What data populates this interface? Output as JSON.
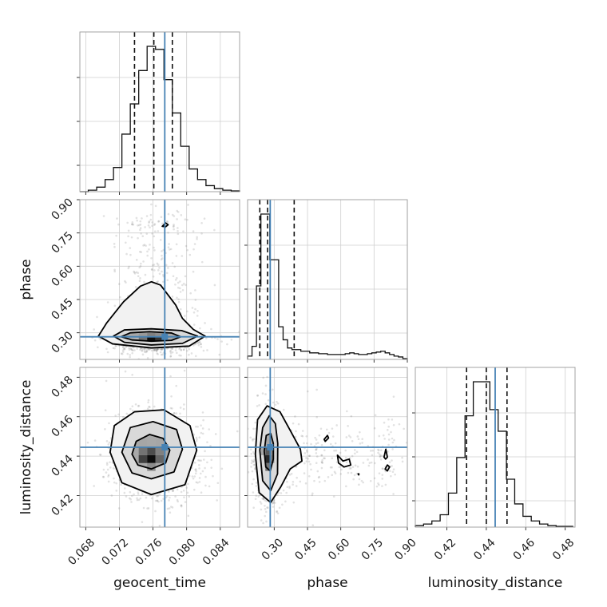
{
  "chart_data": {
    "type": "scatter",
    "plot": "corner",
    "parameters": [
      "geocent_time",
      "phase",
      "luminosity_distance"
    ],
    "axis_labels": {
      "x": [
        "geocent_time",
        "phase",
        "luminosity_distance"
      ],
      "y": [
        "phase",
        "luminosity_distance"
      ]
    },
    "ranges": {
      "geocent_time": [
        0.0673,
        0.0863
      ],
      "phase": [
        0.18,
        0.9
      ],
      "luminosity_distance": [
        0.404,
        0.485
      ]
    },
    "ticks": {
      "geocent_time": [
        "0.068",
        "0.072",
        "0.076",
        "0.080",
        "0.084"
      ],
      "phase": [
        "0.30",
        "0.45",
        "0.60",
        "0.75",
        "0.90"
      ],
      "luminosity_distance": [
        "0.42",
        "0.44",
        "0.46",
        "0.48"
      ]
    },
    "truths": {
      "geocent_time": 0.0774,
      "phase": 0.282,
      "luminosity_distance": 0.4445
    },
    "quantiles": {
      "geocent_time": [
        0.0738,
        0.0761,
        0.0783
      ],
      "phase": [
        0.235,
        0.27,
        0.39
      ],
      "luminosity_distance": [
        0.43,
        0.44,
        0.4505
      ]
    },
    "histograms": {
      "geocent_time": {
        "bin_edges": [
          0.0673,
          0.0683,
          0.0693,
          0.0703,
          0.0713,
          0.0723,
          0.0733,
          0.0743,
          0.0753,
          0.0763,
          0.0773,
          0.0783,
          0.0793,
          0.0803,
          0.0813,
          0.0823,
          0.0833,
          0.0843,
          0.0853,
          0.0863
        ],
        "counts": [
          0,
          0.01,
          0.03,
          0.08,
          0.16,
          0.38,
          0.58,
          0.8,
          0.96,
          0.94,
          0.74,
          0.52,
          0.3,
          0.15,
          0.08,
          0.04,
          0.02,
          0.01,
          0.005
        ]
      },
      "phase": {
        "bin_edges": [
          0.18,
          0.2,
          0.22,
          0.24,
          0.26,
          0.28,
          0.3,
          0.32,
          0.34,
          0.36,
          0.38,
          0.4,
          0.42,
          0.44,
          0.46,
          0.48,
          0.5,
          0.52,
          0.54,
          0.56,
          0.58,
          0.6,
          0.62,
          0.64,
          0.66,
          0.68,
          0.7,
          0.72,
          0.74,
          0.76,
          0.78,
          0.8,
          0.82,
          0.84,
          0.86,
          0.88,
          0.9
        ],
        "counts": [
          0.02,
          0.08,
          0.45,
          0.89,
          0.89,
          0.61,
          0.61,
          0.2,
          0.12,
          0.07,
          0.06,
          0.06,
          0.05,
          0.05,
          0.04,
          0.04,
          0.035,
          0.035,
          0.03,
          0.03,
          0.03,
          0.03,
          0.035,
          0.04,
          0.035,
          0.03,
          0.03,
          0.035,
          0.04,
          0.045,
          0.05,
          0.04,
          0.03,
          0.02,
          0.015,
          0.005
        ]
      },
      "luminosity_distance": {
        "bin_edges": [
          0.404,
          0.4082,
          0.4124,
          0.4166,
          0.4208,
          0.425,
          0.4292,
          0.4334,
          0.4376,
          0.4418,
          0.446,
          0.4502,
          0.4544,
          0.4586,
          0.4628,
          0.467,
          0.4712,
          0.4754,
          0.4796,
          0.4838
        ],
        "counts": [
          0.01,
          0.02,
          0.04,
          0.08,
          0.22,
          0.45,
          0.72,
          0.94,
          0.94,
          0.76,
          0.62,
          0.31,
          0.15,
          0.07,
          0.04,
          0.02,
          0.01,
          0.005,
          0.005
        ]
      }
    },
    "contours_2d": [
      {
        "x": "geocent_time",
        "y": "phase",
        "levels": [
          [
            [
              0.0722,
              0.282
            ],
            [
              0.0735,
              0.268
            ],
            [
              0.0758,
              0.262
            ],
            [
              0.0782,
              0.266
            ],
            [
              0.0793,
              0.282
            ],
            [
              0.0782,
              0.299
            ],
            [
              0.0756,
              0.305
            ],
            [
              0.0733,
              0.3
            ]
          ],
          [
            [
              0.0713,
              0.285
            ],
            [
              0.0726,
              0.257
            ],
            [
              0.0758,
              0.245
            ],
            [
              0.0795,
              0.252
            ],
            [
              0.0813,
              0.285
            ],
            [
              0.0794,
              0.31
            ],
            [
              0.0758,
              0.318
            ],
            [
              0.0726,
              0.313
            ]
          ],
          [
            [
              0.0695,
              0.285
            ],
            [
              0.0712,
              0.25
            ],
            [
              0.0758,
              0.232
            ],
            [
              0.0803,
              0.24
            ],
            [
              0.0822,
              0.285
            ],
            [
              0.0808,
              0.315
            ],
            [
              0.0795,
              0.365
            ],
            [
              0.0787,
              0.425
            ],
            [
              0.0769,
              0.515
            ],
            [
              0.0758,
              0.53
            ],
            [
              0.0745,
              0.51
            ],
            [
              0.0725,
              0.44
            ],
            [
              0.0705,
              0.345
            ]
          ],
          [
            [
              0.0771,
              0.78
            ],
            [
              0.0775,
              0.795
            ],
            [
              0.0778,
              0.787
            ],
            [
              0.0775,
              0.778
            ]
          ]
        ]
      },
      {
        "x": "geocent_time",
        "y": "luminosity_distance",
        "levels": [
          [
            [
              0.0735,
              0.441
            ],
            [
              0.0742,
              0.4355
            ],
            [
              0.0758,
              0.4335
            ],
            [
              0.0775,
              0.4365
            ],
            [
              0.078,
              0.443
            ],
            [
              0.0772,
              0.449
            ],
            [
              0.0756,
              0.451
            ],
            [
              0.074,
              0.4475
            ]
          ],
          [
            [
              0.0723,
              0.442
            ],
            [
              0.0735,
              0.4315
            ],
            [
              0.0758,
              0.4285
            ],
            [
              0.0785,
              0.432
            ],
            [
              0.0795,
              0.4435
            ],
            [
              0.0788,
              0.4535
            ],
            [
              0.076,
              0.4575
            ],
            [
              0.0733,
              0.4545
            ]
          ],
          [
            [
              0.0709,
              0.442
            ],
            [
              0.0723,
              0.4265
            ],
            [
              0.0758,
              0.4205
            ],
            [
              0.0798,
              0.4255
            ],
            [
              0.0812,
              0.443
            ],
            [
              0.0804,
              0.4555
            ],
            [
              0.0773,
              0.4635
            ],
            [
              0.0738,
              0.4625
            ],
            [
              0.0714,
              0.4555
            ]
          ]
        ]
      },
      {
        "x": "phase",
        "y": "luminosity_distance",
        "levels": [
          [
            [
              0.255,
              0.4425
            ],
            [
              0.262,
              0.4345
            ],
            [
              0.282,
              0.4325
            ],
            [
              0.296,
              0.4385
            ],
            [
              0.296,
              0.4465
            ],
            [
              0.284,
              0.4515
            ],
            [
              0.264,
              0.4505
            ]
          ],
          [
            [
              0.235,
              0.443
            ],
            [
              0.248,
              0.4275
            ],
            [
              0.284,
              0.4225
            ],
            [
              0.315,
              0.431
            ],
            [
              0.316,
              0.4465
            ],
            [
              0.305,
              0.4565
            ],
            [
              0.278,
              0.4605
            ],
            [
              0.248,
              0.4545
            ]
          ],
          [
            [
              0.215,
              0.441
            ],
            [
              0.232,
              0.4215
            ],
            [
              0.284,
              0.4165
            ],
            [
              0.33,
              0.4245
            ],
            [
              0.372,
              0.4335
            ],
            [
              0.425,
              0.4375
            ],
            [
              0.418,
              0.4435
            ],
            [
              0.37,
              0.4535
            ],
            [
              0.326,
              0.4625
            ],
            [
              0.268,
              0.4655
            ],
            [
              0.225,
              0.4585
            ]
          ],
          [
            [
              0.525,
              0.4485
            ],
            [
              0.54,
              0.4505
            ],
            [
              0.545,
              0.4492
            ],
            [
              0.53,
              0.4475
            ]
          ],
          [
            [
              0.585,
              0.4405
            ],
            [
              0.61,
              0.4375
            ],
            [
              0.638,
              0.4385
            ],
            [
              0.645,
              0.4355
            ],
            [
              0.615,
              0.4345
            ],
            [
              0.59,
              0.4365
            ]
          ],
          [
            [
              0.795,
              0.4395
            ],
            [
              0.802,
              0.4385
            ],
            [
              0.81,
              0.4395
            ],
            [
              0.803,
              0.4435
            ]
          ],
          [
            [
              0.8,
              0.4335
            ],
            [
              0.81,
              0.4325
            ],
            [
              0.82,
              0.4345
            ],
            [
              0.81,
              0.4355
            ]
          ],
          [
            [
              0.678,
              0.431
            ],
            [
              0.681,
              0.4305
            ],
            [
              0.682,
              0.431
            ]
          ]
        ]
      }
    ],
    "density_2d": [
      {
        "x": "geocent_time",
        "y": "phase",
        "cells": [
          {
            "x": [
              0.0743,
              0.0753
            ],
            "y": [
              0.262,
              0.282
            ],
            "v": 0.55
          },
          {
            "x": [
              0.0753,
              0.0763
            ],
            "y": [
              0.262,
              0.282
            ],
            "v": 0.95
          },
          {
            "x": [
              0.0763,
              0.0773
            ],
            "y": [
              0.262,
              0.282
            ],
            "v": 0.8
          },
          {
            "x": [
              0.0743,
              0.0753
            ],
            "y": [
              0.282,
              0.302
            ],
            "v": 0.4
          },
          {
            "x": [
              0.0753,
              0.0763
            ],
            "y": [
              0.282,
              0.302
            ],
            "v": 0.5
          },
          {
            "x": [
              0.0763,
              0.0773
            ],
            "y": [
              0.282,
              0.302
            ],
            "v": 0.45
          },
          {
            "x": [
              0.0733,
              0.0743
            ],
            "y": [
              0.262,
              0.282
            ],
            "v": 0.3
          },
          {
            "x": [
              0.0773,
              0.0783
            ],
            "y": [
              0.262,
              0.282
            ],
            "v": 0.35
          }
        ]
      },
      {
        "x": "geocent_time",
        "y": "luminosity_distance",
        "cells": [
          {
            "x": [
              0.0743,
              0.0753
            ],
            "y": [
              0.4365,
              0.4405
            ],
            "v": 0.75
          },
          {
            "x": [
              0.0753,
              0.0763
            ],
            "y": [
              0.4365,
              0.4405
            ],
            "v": 0.95
          },
          {
            "x": [
              0.0753,
              0.0763
            ],
            "y": [
              0.4405,
              0.4445
            ],
            "v": 0.7
          },
          {
            "x": [
              0.0743,
              0.0753
            ],
            "y": [
              0.4405,
              0.4445
            ],
            "v": 0.55
          },
          {
            "x": [
              0.0763,
              0.0773
            ],
            "y": [
              0.4365,
              0.4405
            ],
            "v": 0.6
          },
          {
            "x": [
              0.0763,
              0.0773
            ],
            "y": [
              0.4405,
              0.4445
            ],
            "v": 0.5
          },
          {
            "x": [
              0.0753,
              0.0763
            ],
            "y": [
              0.4325,
              0.4365
            ],
            "v": 0.45
          },
          {
            "x": [
              0.0743,
              0.0753
            ],
            "y": [
              0.4445,
              0.4485
            ],
            "v": 0.35
          },
          {
            "x": [
              0.0763,
              0.0773
            ],
            "y": [
              0.4445,
              0.4485
            ],
            "v": 0.35
          }
        ]
      },
      {
        "x": "phase",
        "y": "luminosity_distance",
        "cells": [
          {
            "x": [
              0.26,
              0.28
            ],
            "y": [
              0.4365,
              0.4405
            ],
            "v": 0.85
          },
          {
            "x": [
              0.26,
              0.28
            ],
            "y": [
              0.4405,
              0.4445
            ],
            "v": 0.65
          },
          {
            "x": [
              0.26,
              0.28
            ],
            "y": [
              0.4325,
              0.4365
            ],
            "v": 0.55
          },
          {
            "x": [
              0.28,
              0.3
            ],
            "y": [
              0.4365,
              0.4405
            ],
            "v": 0.5
          },
          {
            "x": [
              0.28,
              0.3
            ],
            "y": [
              0.4405,
              0.4445
            ],
            "v": 0.45
          },
          {
            "x": [
              0.24,
              0.26
            ],
            "y": [
              0.4405,
              0.4445
            ],
            "v": 0.35
          },
          {
            "x": [
              0.26,
              0.28
            ],
            "y": [
              0.4445,
              0.4485
            ],
            "v": 0.35
          }
        ]
      }
    ]
  }
}
